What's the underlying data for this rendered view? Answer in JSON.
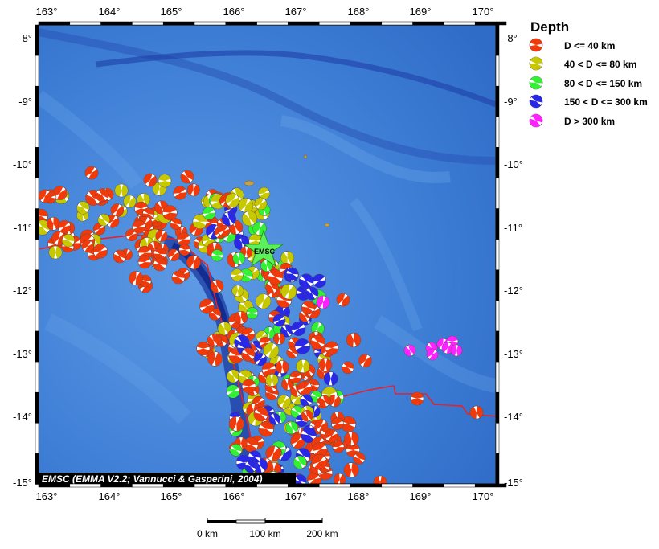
{
  "map": {
    "lon_ticks": [
      "163°",
      "164°",
      "165°",
      "166°",
      "167°",
      "168°",
      "169°",
      "170°"
    ],
    "lat_ticks": [
      "-8°",
      "-9°",
      "-10°",
      "-11°",
      "-12°",
      "-13°",
      "-14°",
      "-15°"
    ],
    "credit": "EMSC (EMMA V2.2; Vannucci & Gasperini, 2004)",
    "epicenter_label": "EMSC",
    "colors": {
      "ocean": "#3f7fd6",
      "trench": "#1c3aa0",
      "plate_boundary": "#e8202a",
      "epicenter": "#5cf05c"
    }
  },
  "legend": {
    "title": "Depth",
    "items": [
      {
        "label": "D <= 40 km",
        "color": "#f03a0c"
      },
      {
        "label": "40 < D <= 80 km",
        "color": "#c8c800"
      },
      {
        "label": "80 < D <= 150 km",
        "color": "#32f032"
      },
      {
        "label": "150 < D <= 300 km",
        "color": "#2828e6"
      },
      {
        "label": "D > 300 km",
        "color": "#ff22ff"
      }
    ]
  },
  "scale_bar": {
    "labels": [
      "0 km",
      "100 km",
      "200 km"
    ]
  }
}
